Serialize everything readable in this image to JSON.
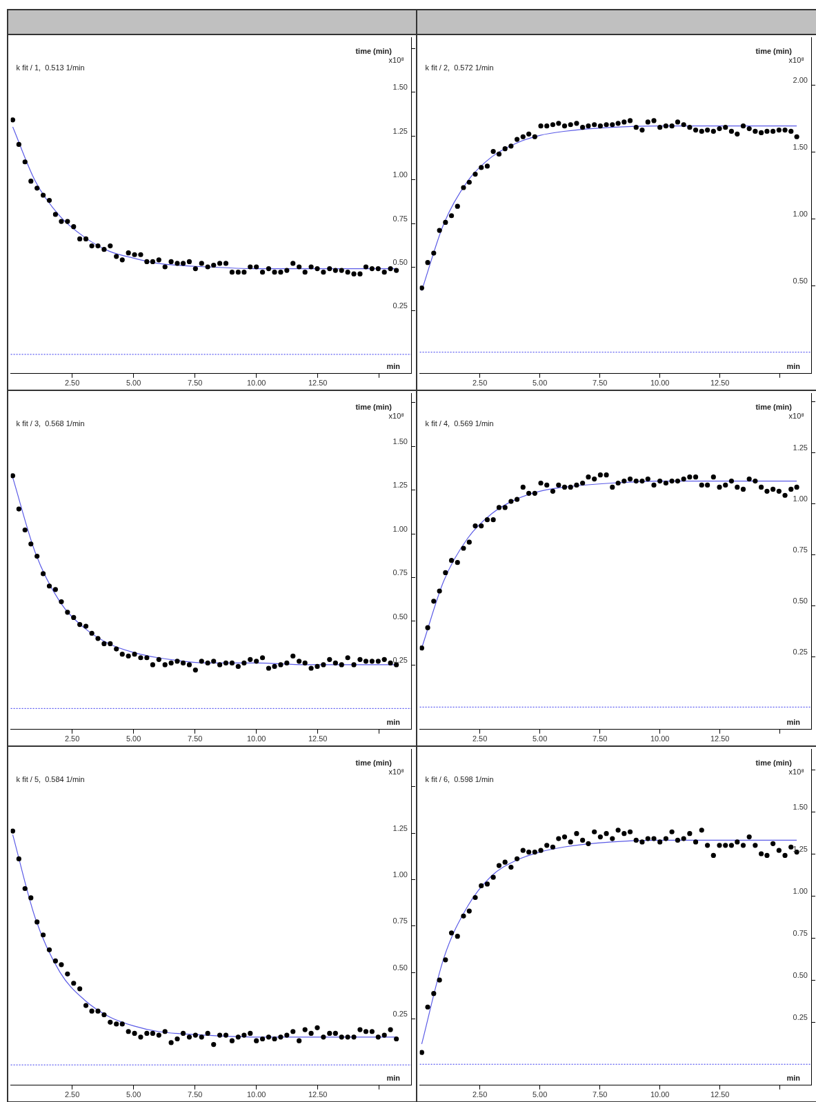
{
  "chart_data": [
    {
      "type": "scatter",
      "title": "k fit / 1,  0.513 1/min",
      "xlabel": "min",
      "ylabel": "x10⁸",
      "annotations": [
        "time (min)"
      ],
      "grid": false,
      "xlim": [
        0,
        16.3
      ],
      "ylim": [
        -0.11,
        1.81
      ],
      "xticks": [
        {
          "value": 2.5,
          "label": "2.50"
        },
        {
          "value": 5,
          "label": "5.00"
        },
        {
          "value": 7.5,
          "label": "7.50"
        },
        {
          "value": 10,
          "label": "10.00"
        },
        {
          "value": 12.5,
          "label": "12.50"
        },
        {
          "value": 15,
          "label": null
        }
      ],
      "yticks": [
        {
          "value": 0.25,
          "label": "0.25"
        },
        {
          "value": 0.5,
          "label": "0.50"
        },
        {
          "value": 0.75,
          "label": "0.75"
        },
        {
          "value": 1,
          "label": "1.00"
        },
        {
          "value": 1.25,
          "label": "1.25"
        },
        {
          "value": 1.5,
          "label": "1.50"
        },
        {
          "value": 1.75,
          "label": null
        }
      ],
      "ref_lines": [
        {
          "axis": "y",
          "value": 0,
          "color": "#3333ee",
          "line_style": "dotted"
        }
      ],
      "series": [
        {
          "type": "scatter",
          "color": "#000000",
          "x": [
            0.08,
            0.33,
            0.58,
            0.82,
            1.07,
            1.32,
            1.57,
            1.82,
            2.06,
            2.31,
            2.56,
            2.81,
            3.06,
            3.3,
            3.55,
            3.8,
            4.05,
            4.3,
            4.54,
            4.79,
            5.04,
            5.29,
            5.54,
            5.78,
            6.03,
            6.28,
            6.53,
            6.78,
            7.02,
            7.27,
            7.52,
            7.77,
            8.02,
            8.26,
            8.51,
            8.76,
            9.01,
            9.26,
            9.5,
            9.75,
            10.0,
            10.25,
            10.5,
            10.74,
            10.99,
            11.24,
            11.49,
            11.74,
            11.98,
            12.23,
            12.48,
            12.73,
            12.98,
            13.22,
            13.47,
            13.72,
            13.97,
            14.22,
            14.46,
            14.71,
            14.96,
            15.21,
            15.46,
            15.7
          ],
          "marker": "circle",
          "values": [
            1.34,
            1.2,
            1.1,
            0.99,
            0.95,
            0.91,
            0.88,
            0.8,
            0.76,
            0.76,
            0.73,
            0.66,
            0.66,
            0.62,
            0.62,
            0.6,
            0.62,
            0.56,
            0.54,
            0.58,
            0.57,
            0.57,
            0.53,
            0.53,
            0.54,
            0.5,
            0.53,
            0.52,
            0.52,
            0.53,
            0.49,
            0.52,
            0.5,
            0.51,
            0.52,
            0.52,
            0.47,
            0.47,
            0.47,
            0.5,
            0.5,
            0.47,
            0.49,
            0.47,
            0.47,
            0.48,
            0.52,
            0.5,
            0.47,
            0.5,
            0.49,
            0.47,
            0.49,
            0.48,
            0.48,
            0.47,
            0.46,
            0.46,
            0.5,
            0.49,
            0.49,
            0.47,
            0.49,
            0.48
          ]
        },
        {
          "type": "line",
          "color": "#5a5ae6",
          "x": [
            0.08,
            1,
            2,
            3,
            4,
            5,
            6,
            8,
            10,
            12,
            15.7
          ],
          "values": [
            1.3,
            0.99,
            0.79,
            0.67,
            0.59,
            0.55,
            0.52,
            0.5,
            0.49,
            0.49,
            0.49
          ]
        }
      ]
    },
    {
      "type": "scatter",
      "title": "k fit / 2,  0.572 1/min",
      "xlabel": "min",
      "ylabel": "x10⁸",
      "annotations": [
        "time (min)"
      ],
      "grid": false,
      "xlim": [
        0,
        16.3
      ],
      "ylim": [
        -0.16,
        2.35
      ],
      "xticks": [
        {
          "value": 2.5,
          "label": "2.50"
        },
        {
          "value": 5,
          "label": "5.00"
        },
        {
          "value": 7.5,
          "label": "7.50"
        },
        {
          "value": 10,
          "label": "10.00"
        },
        {
          "value": 12.5,
          "label": "12.50"
        },
        {
          "value": 15,
          "label": null
        }
      ],
      "yticks": [
        {
          "value": 0.5,
          "label": "0.50"
        },
        {
          "value": 1,
          "label": "1.00"
        },
        {
          "value": 1.5,
          "label": "1.50"
        },
        {
          "value": 2,
          "label": "2.00"
        }
      ],
      "ref_lines": [
        {
          "axis": "y",
          "value": 0,
          "color": "#3333ee",
          "line_style": "dotted"
        }
      ],
      "series": [
        {
          "type": "scatter",
          "color": "#000000",
          "x": [
            0.08,
            0.33,
            0.58,
            0.82,
            1.07,
            1.32,
            1.57,
            1.82,
            2.06,
            2.31,
            2.56,
            2.81,
            3.06,
            3.3,
            3.55,
            3.8,
            4.05,
            4.3,
            4.54,
            4.79,
            5.04,
            5.29,
            5.54,
            5.78,
            6.03,
            6.28,
            6.53,
            6.78,
            7.02,
            7.27,
            7.52,
            7.77,
            8.02,
            8.26,
            8.51,
            8.76,
            9.01,
            9.26,
            9.5,
            9.75,
            10.0,
            10.25,
            10.5,
            10.74,
            10.99,
            11.24,
            11.49,
            11.74,
            11.98,
            12.23,
            12.48,
            12.73,
            12.98,
            13.22,
            13.47,
            13.72,
            13.97,
            14.22,
            14.46,
            14.71,
            14.96,
            15.21,
            15.46,
            15.7
          ],
          "marker": "circle",
          "values": [
            0.48,
            0.67,
            0.74,
            0.91,
            0.97,
            1.02,
            1.09,
            1.23,
            1.27,
            1.33,
            1.38,
            1.39,
            1.5,
            1.48,
            1.52,
            1.54,
            1.59,
            1.61,
            1.63,
            1.61,
            1.69,
            1.69,
            1.7,
            1.71,
            1.69,
            1.7,
            1.71,
            1.68,
            1.69,
            1.7,
            1.69,
            1.7,
            1.7,
            1.71,
            1.72,
            1.73,
            1.68,
            1.66,
            1.72,
            1.73,
            1.68,
            1.69,
            1.69,
            1.72,
            1.7,
            1.68,
            1.66,
            1.65,
            1.66,
            1.65,
            1.67,
            1.68,
            1.65,
            1.63,
            1.69,
            1.67,
            1.65,
            1.64,
            1.65,
            1.65,
            1.66,
            1.66,
            1.65,
            1.61
          ]
        },
        {
          "type": "line",
          "color": "#5a5ae6",
          "x": [
            0.08,
            1,
            2,
            3,
            4,
            5,
            6,
            8,
            10,
            12,
            15.7
          ],
          "values": [
            0.46,
            0.96,
            1.28,
            1.46,
            1.56,
            1.62,
            1.65,
            1.68,
            1.69,
            1.69,
            1.69
          ]
        }
      ]
    },
    {
      "type": "scatter",
      "title": "k fit / 3,  0.568 1/min",
      "xlabel": "min",
      "ylabel": "x10⁸",
      "annotations": [
        "time (min)"
      ],
      "grid": false,
      "xlim": [
        0,
        16.3
      ],
      "ylim": [
        -0.12,
        1.8
      ],
      "xticks": [
        {
          "value": 2.5,
          "label": "2.50"
        },
        {
          "value": 5,
          "label": "5.00"
        },
        {
          "value": 7.5,
          "label": "7.50"
        },
        {
          "value": 10,
          "label": "10.00"
        },
        {
          "value": 12.5,
          "label": "12.50"
        },
        {
          "value": 15,
          "label": null
        }
      ],
      "yticks": [
        {
          "value": 0.25,
          "label": "0.25"
        },
        {
          "value": 0.5,
          "label": "0.50"
        },
        {
          "value": 0.75,
          "label": "0.75"
        },
        {
          "value": 1,
          "label": "1.00"
        },
        {
          "value": 1.25,
          "label": "1.25"
        },
        {
          "value": 1.5,
          "label": "1.50"
        },
        {
          "value": 1.75,
          "label": null
        }
      ],
      "ref_lines": [
        {
          "axis": "y",
          "value": 0,
          "color": "#3333ee",
          "line_style": "dotted"
        }
      ],
      "series": [
        {
          "type": "scatter",
          "color": "#000000",
          "x": [
            0.08,
            0.33,
            0.58,
            0.82,
            1.07,
            1.32,
            1.57,
            1.82,
            2.06,
            2.31,
            2.56,
            2.81,
            3.06,
            3.3,
            3.55,
            3.8,
            4.05,
            4.3,
            4.54,
            4.79,
            5.04,
            5.29,
            5.54,
            5.78,
            6.03,
            6.28,
            6.53,
            6.78,
            7.02,
            7.27,
            7.52,
            7.77,
            8.02,
            8.26,
            8.51,
            8.76,
            9.01,
            9.26,
            9.5,
            9.75,
            10.0,
            10.25,
            10.5,
            10.74,
            10.99,
            11.24,
            11.49,
            11.74,
            11.98,
            12.23,
            12.48,
            12.73,
            12.98,
            13.22,
            13.47,
            13.72,
            13.97,
            14.22,
            14.46,
            14.71,
            14.96,
            15.21,
            15.46,
            15.7
          ],
          "marker": "circle",
          "values": [
            1.33,
            1.14,
            1.02,
            0.94,
            0.87,
            0.77,
            0.7,
            0.68,
            0.61,
            0.55,
            0.52,
            0.48,
            0.47,
            0.43,
            0.4,
            0.37,
            0.37,
            0.34,
            0.31,
            0.3,
            0.31,
            0.29,
            0.29,
            0.25,
            0.28,
            0.25,
            0.26,
            0.27,
            0.26,
            0.25,
            0.22,
            0.27,
            0.26,
            0.27,
            0.25,
            0.26,
            0.26,
            0.24,
            0.26,
            0.28,
            0.27,
            0.29,
            0.23,
            0.24,
            0.25,
            0.26,
            0.3,
            0.27,
            0.26,
            0.23,
            0.24,
            0.25,
            0.28,
            0.26,
            0.25,
            0.29,
            0.25,
            0.28,
            0.27,
            0.27,
            0.27,
            0.28,
            0.26,
            0.25
          ]
        },
        {
          "type": "line",
          "color": "#5a5ae6",
          "x": [
            0.08,
            1,
            2,
            3,
            4,
            5,
            6,
            8,
            10,
            12,
            15.7
          ],
          "values": [
            1.32,
            0.89,
            0.61,
            0.46,
            0.37,
            0.32,
            0.29,
            0.26,
            0.26,
            0.25,
            0.25
          ]
        }
      ]
    },
    {
      "type": "scatter",
      "title": "k fit / 4,  0.569 1/min",
      "xlabel": "min",
      "ylabel": "x10⁸",
      "annotations": [
        "time (min)"
      ],
      "grid": false,
      "xlim": [
        0,
        16.3
      ],
      "ylim": [
        -0.11,
        1.54
      ],
      "xticks": [
        {
          "value": 2.5,
          "label": "2.50"
        },
        {
          "value": 5,
          "label": "5.00"
        },
        {
          "value": 7.5,
          "label": "7.50"
        },
        {
          "value": 10,
          "label": "10.00"
        },
        {
          "value": 12.5,
          "label": "12.50"
        },
        {
          "value": 15,
          "label": null
        }
      ],
      "yticks": [
        {
          "value": 0.25,
          "label": "0.25"
        },
        {
          "value": 0.5,
          "label": "0.50"
        },
        {
          "value": 0.75,
          "label": "0.75"
        },
        {
          "value": 1,
          "label": "1.00"
        },
        {
          "value": 1.25,
          "label": "1.25"
        },
        {
          "value": 1.5,
          "label": null
        }
      ],
      "ref_lines": [
        {
          "axis": "y",
          "value": 0,
          "color": "#3333ee",
          "line_style": "dotted"
        }
      ],
      "series": [
        {
          "type": "scatter",
          "color": "#000000",
          "x": [
            0.08,
            0.33,
            0.58,
            0.82,
            1.07,
            1.32,
            1.57,
            1.82,
            2.06,
            2.31,
            2.56,
            2.81,
            3.06,
            3.3,
            3.55,
            3.8,
            4.05,
            4.3,
            4.54,
            4.79,
            5.04,
            5.29,
            5.54,
            5.78,
            6.03,
            6.28,
            6.53,
            6.78,
            7.02,
            7.27,
            7.52,
            7.77,
            8.02,
            8.26,
            8.51,
            8.76,
            9.01,
            9.26,
            9.5,
            9.75,
            10.0,
            10.25,
            10.5,
            10.74,
            10.99,
            11.24,
            11.49,
            11.74,
            11.98,
            12.23,
            12.48,
            12.73,
            12.98,
            13.22,
            13.47,
            13.72,
            13.97,
            14.22,
            14.46,
            14.71,
            14.96,
            15.21,
            15.46,
            15.7
          ],
          "marker": "circle",
          "values": [
            0.29,
            0.39,
            0.52,
            0.57,
            0.66,
            0.72,
            0.71,
            0.78,
            0.81,
            0.89,
            0.89,
            0.92,
            0.92,
            0.98,
            0.98,
            1.01,
            1.02,
            1.08,
            1.05,
            1.05,
            1.1,
            1.09,
            1.06,
            1.09,
            1.08,
            1.08,
            1.09,
            1.1,
            1.13,
            1.12,
            1.14,
            1.14,
            1.08,
            1.1,
            1.11,
            1.12,
            1.11,
            1.11,
            1.12,
            1.09,
            1.11,
            1.1,
            1.11,
            1.11,
            1.12,
            1.13,
            1.13,
            1.09,
            1.09,
            1.13,
            1.08,
            1.09,
            1.11,
            1.08,
            1.07,
            1.12,
            1.11,
            1.08,
            1.06,
            1.07,
            1.06,
            1.04,
            1.07,
            1.08
          ]
        },
        {
          "type": "line",
          "color": "#5a5ae6",
          "x": [
            0.08,
            1,
            2,
            3,
            4,
            5,
            6,
            8,
            10,
            12,
            15.7
          ],
          "values": [
            0.29,
            0.62,
            0.83,
            0.95,
            1.02,
            1.06,
            1.08,
            1.1,
            1.11,
            1.11,
            1.11
          ]
        }
      ]
    },
    {
      "type": "scatter",
      "title": "k fit / 5,  0.584 1/min",
      "xlabel": "min",
      "ylabel": "x10⁸",
      "annotations": [
        "time (min)"
      ],
      "grid": false,
      "xlim": [
        0,
        16.3
      ],
      "ylim": [
        -0.11,
        1.7
      ],
      "xticks": [
        {
          "value": 2.5,
          "label": "2.50"
        },
        {
          "value": 5,
          "label": "5.00"
        },
        {
          "value": 7.5,
          "label": "7.50"
        },
        {
          "value": 10,
          "label": "10.00"
        },
        {
          "value": 12.5,
          "label": "12.50"
        },
        {
          "value": 15,
          "label": null
        }
      ],
      "yticks": [
        {
          "value": 0.25,
          "label": "0.25"
        },
        {
          "value": 0.5,
          "label": "0.50"
        },
        {
          "value": 0.75,
          "label": "0.75"
        },
        {
          "value": 1,
          "label": "1.00"
        },
        {
          "value": 1.25,
          "label": "1.25"
        },
        {
          "value": 1.5,
          "label": null
        }
      ],
      "ref_lines": [
        {
          "axis": "y",
          "value": 0,
          "color": "#3333ee",
          "line_style": "dotted"
        }
      ],
      "series": [
        {
          "type": "scatter",
          "color": "#000000",
          "x": [
            0.08,
            0.33,
            0.58,
            0.82,
            1.07,
            1.32,
            1.57,
            1.82,
            2.06,
            2.31,
            2.56,
            2.81,
            3.06,
            3.3,
            3.55,
            3.8,
            4.05,
            4.3,
            4.54,
            4.79,
            5.04,
            5.29,
            5.54,
            5.78,
            6.03,
            6.28,
            6.53,
            6.78,
            7.02,
            7.27,
            7.52,
            7.77,
            8.02,
            8.26,
            8.51,
            8.76,
            9.01,
            9.26,
            9.5,
            9.75,
            10.0,
            10.25,
            10.5,
            10.74,
            10.99,
            11.24,
            11.49,
            11.74,
            11.98,
            12.23,
            12.48,
            12.73,
            12.98,
            13.22,
            13.47,
            13.72,
            13.97,
            14.22,
            14.46,
            14.71,
            14.96,
            15.21,
            15.46,
            15.7
          ],
          "marker": "circle",
          "values": [
            1.26,
            1.11,
            0.95,
            0.9,
            0.77,
            0.7,
            0.62,
            0.56,
            0.54,
            0.49,
            0.44,
            0.41,
            0.32,
            0.29,
            0.29,
            0.27,
            0.23,
            0.22,
            0.22,
            0.18,
            0.17,
            0.15,
            0.17,
            0.17,
            0.16,
            0.18,
            0.12,
            0.14,
            0.17,
            0.15,
            0.16,
            0.15,
            0.17,
            0.11,
            0.16,
            0.16,
            0.13,
            0.15,
            0.16,
            0.17,
            0.13,
            0.14,
            0.15,
            0.14,
            0.15,
            0.16,
            0.18,
            0.13,
            0.19,
            0.17,
            0.2,
            0.15,
            0.17,
            0.17,
            0.15,
            0.15,
            0.15,
            0.19,
            0.18,
            0.18,
            0.15,
            0.16,
            0.19,
            0.14
          ]
        },
        {
          "type": "line",
          "color": "#5a5ae6",
          "x": [
            0.08,
            1,
            2,
            3,
            4,
            5,
            6,
            8,
            10,
            12,
            15.7
          ],
          "values": [
            1.24,
            0.79,
            0.5,
            0.35,
            0.26,
            0.21,
            0.18,
            0.16,
            0.15,
            0.15,
            0.15
          ]
        }
      ]
    },
    {
      "type": "scatter",
      "title": "k fit / 6,  0.598 1/min",
      "xlabel": "min",
      "ylabel": "x10⁸",
      "annotations": [
        "time (min)"
      ],
      "grid": false,
      "xlim": [
        0,
        16.3
      ],
      "ylim": [
        -0.125,
        1.87
      ],
      "xticks": [
        {
          "value": 2.5,
          "label": "2.50"
        },
        {
          "value": 5,
          "label": "5.00"
        },
        {
          "value": 7.5,
          "label": "7.50"
        },
        {
          "value": 10,
          "label": "10.00"
        },
        {
          "value": 12.5,
          "label": "12.50"
        },
        {
          "value": 15,
          "label": null
        }
      ],
      "yticks": [
        {
          "value": 0.25,
          "label": "0.25"
        },
        {
          "value": 0.5,
          "label": "0.50"
        },
        {
          "value": 0.75,
          "label": "0.75"
        },
        {
          "value": 1,
          "label": "1.00"
        },
        {
          "value": 1.25,
          "label": "1.25"
        },
        {
          "value": 1.5,
          "label": "1.50"
        },
        {
          "value": 1.75,
          "label": null
        }
      ],
      "ref_lines": [
        {
          "axis": "y",
          "value": 0,
          "color": "#3333ee",
          "line_style": "dotted"
        }
      ],
      "series": [
        {
          "type": "scatter",
          "color": "#000000",
          "x": [
            0.08,
            0.33,
            0.58,
            0.82,
            1.07,
            1.32,
            1.57,
            1.82,
            2.06,
            2.31,
            2.56,
            2.81,
            3.06,
            3.3,
            3.55,
            3.8,
            4.05,
            4.3,
            4.54,
            4.79,
            5.04,
            5.29,
            5.54,
            5.78,
            6.03,
            6.28,
            6.53,
            6.78,
            7.02,
            7.27,
            7.52,
            7.77,
            8.02,
            8.26,
            8.51,
            8.76,
            9.01,
            9.26,
            9.5,
            9.75,
            10.0,
            10.25,
            10.5,
            10.74,
            10.99,
            11.24,
            11.49,
            11.74,
            11.98,
            12.23,
            12.48,
            12.73,
            12.98,
            13.22,
            13.47,
            13.72,
            13.97,
            14.22,
            14.46,
            14.71,
            14.96,
            15.21,
            15.46,
            15.7
          ],
          "marker": "circle",
          "values": [
            0.07,
            0.34,
            0.42,
            0.5,
            0.62,
            0.78,
            0.76,
            0.88,
            0.91,
            0.99,
            1.06,
            1.07,
            1.11,
            1.18,
            1.2,
            1.17,
            1.22,
            1.27,
            1.26,
            1.26,
            1.27,
            1.3,
            1.29,
            1.34,
            1.35,
            1.32,
            1.37,
            1.33,
            1.31,
            1.38,
            1.35,
            1.37,
            1.34,
            1.39,
            1.37,
            1.38,
            1.33,
            1.32,
            1.34,
            1.34,
            1.32,
            1.34,
            1.38,
            1.33,
            1.34,
            1.37,
            1.32,
            1.39,
            1.3,
            1.24,
            1.3,
            1.3,
            1.3,
            1.32,
            1.3,
            1.35,
            1.3,
            1.25,
            1.24,
            1.31,
            1.27,
            1.24,
            1.29,
            1.26
          ]
        },
        {
          "type": "line",
          "color": "#5a5ae6",
          "x": [
            0.08,
            1,
            2,
            3,
            4,
            5,
            6,
            8,
            10,
            12,
            15.7
          ],
          "values": [
            0.12,
            0.63,
            0.94,
            1.12,
            1.21,
            1.26,
            1.29,
            1.32,
            1.33,
            1.33,
            1.33
          ]
        }
      ]
    }
  ]
}
